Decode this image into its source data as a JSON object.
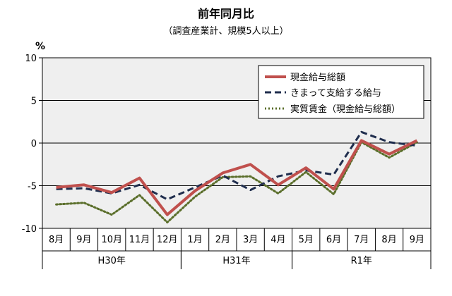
{
  "chart_data": {
    "type": "line",
    "title": "前年同月比",
    "subtitle": "（調査産業計、規模5人以上）",
    "ylabel": "%",
    "ylim": [
      -10,
      10
    ],
    "yticks": [
      10,
      5,
      0,
      -5,
      -10
    ],
    "grid": true,
    "legend_position": "top-right",
    "categories": [
      "8月",
      "9月",
      "10月",
      "11月",
      "12月",
      "1月",
      "2月",
      "3月",
      "4月",
      "5月",
      "6月",
      "7月",
      "8月",
      "9月"
    ],
    "groups": [
      {
        "label": "H30年",
        "start": 0,
        "end": 4
      },
      {
        "label": "H31年",
        "start": 5,
        "end": 8
      },
      {
        "label": "R1年",
        "start": 9,
        "end": 13
      }
    ],
    "series": [
      {
        "name": "現金給与総額",
        "color": "#c0504d",
        "style": "solid",
        "values": [
          -5.2,
          -4.9,
          -5.8,
          -4.1,
          -8.4,
          -5.6,
          -3.5,
          -2.5,
          -4.9,
          -2.9,
          -5.4,
          0.3,
          -1.3,
          0.3
        ]
      },
      {
        "name": "きまって支給する給与",
        "color": "#1f2d4d",
        "style": "dashed",
        "values": [
          -5.4,
          -5.3,
          -5.9,
          -4.9,
          -6.6,
          -5.2,
          -3.8,
          -5.5,
          -3.9,
          -3.2,
          -3.7,
          1.3,
          0.1,
          -0.3
        ]
      },
      {
        "name": "実質賃金（現金給与総額）",
        "color": "#5a6e2a",
        "style": "dotted",
        "values": [
          -7.2,
          -7.0,
          -8.4,
          -6.1,
          -9.3,
          -6.3,
          -4.0,
          -3.9,
          -5.9,
          -3.4,
          -6.0,
          0.1,
          -1.7,
          0.1
        ]
      }
    ]
  }
}
